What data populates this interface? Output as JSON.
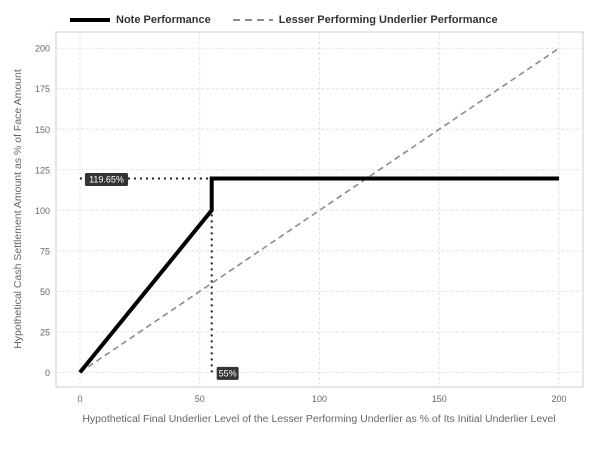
{
  "chart_data": {
    "type": "line",
    "xlabel": "Hypothetical Final Underlier Level of the Lesser Performing Underlier as % of Its Initial Underlier Level",
    "ylabel": "Hypothetical Cash Settlement Amount as % of Face Amount",
    "xlim": [
      -10,
      210
    ],
    "ylim": [
      -9,
      210
    ],
    "xticks": [
      0,
      50,
      100,
      150,
      200
    ],
    "yticks": [
      0,
      25,
      50,
      75,
      100,
      125,
      150,
      175,
      200
    ],
    "grid": true,
    "legend_position": "top-left",
    "series": [
      {
        "name": "Note Performance",
        "style": "solid",
        "color": "#000000",
        "x": [
          0,
          55,
          55,
          200
        ],
        "y": [
          0,
          100,
          119.65,
          119.65
        ]
      },
      {
        "name": "Lesser Performing Underlier Performance",
        "style": "dashed",
        "color": "#8c8c8c",
        "x": [
          0,
          200
        ],
        "y": [
          0,
          200
        ]
      }
    ],
    "reference_lines": [
      {
        "x": [
          0,
          55
        ],
        "y": [
          119.65,
          119.65
        ],
        "style": "dotted"
      },
      {
        "x": [
          55,
          55
        ],
        "y": [
          0,
          119.65
        ],
        "style": "dotted"
      }
    ],
    "annotations": [
      {
        "text": "119.65%",
        "x": 0,
        "y": 119.65
      },
      {
        "text": "55%",
        "x": 55,
        "y": 0
      }
    ]
  }
}
